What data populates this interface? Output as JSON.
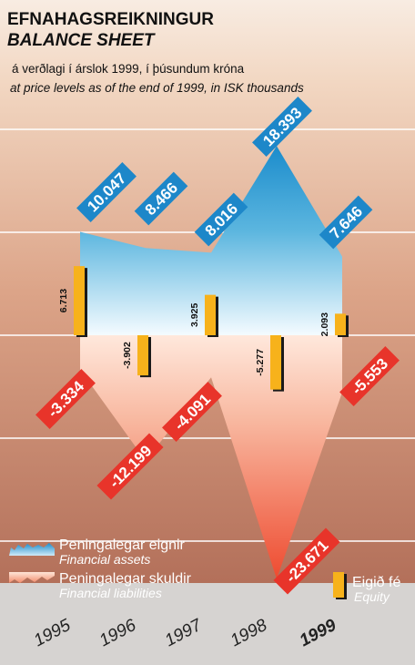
{
  "chart_data": {
    "type": "area",
    "title": "EFNAHAGSREIKNINGUR",
    "title_en": "BALANCE SHEET",
    "subtitle": "á verðlagi í árslok 1999, í þúsundum króna",
    "subtitle_en": "at price levels as of the end of 1999, in ISK thousands",
    "categories": [
      "1995",
      "1996",
      "1997",
      "1998",
      "1999"
    ],
    "highlight_category": "1999",
    "ylim": [
      -24000,
      20000
    ],
    "grid": true,
    "series": [
      {
        "name": "Peningalegar eignir",
        "name_en": "Financial assets",
        "kind": "area",
        "color": "#2f9fd6",
        "values": [
          10047,
          8466,
          8016,
          18393,
          7646
        ],
        "labels": [
          "10.047",
          "8.466",
          "8.016",
          "18.393",
          "7.646"
        ]
      },
      {
        "name": "Peningalegar skuldir",
        "name_en": "Financial liabilities",
        "kind": "area",
        "color": "#e8402c",
        "values": [
          -3334,
          -12199,
          -4091,
          -23671,
          -5553
        ],
        "labels": [
          "-3.334",
          "-12.199",
          "-4.091",
          "-23.671",
          "-5.553"
        ]
      },
      {
        "name": "Eigið fé",
        "name_en": "Equity",
        "kind": "bar",
        "color": "#f7b21b",
        "values": [
          6713,
          -3902,
          3925,
          -5277,
          2093
        ],
        "labels": [
          "6.713",
          "-3.902",
          "3.925",
          "-5.277",
          "2.093"
        ]
      }
    ],
    "legend": "bottom"
  }
}
